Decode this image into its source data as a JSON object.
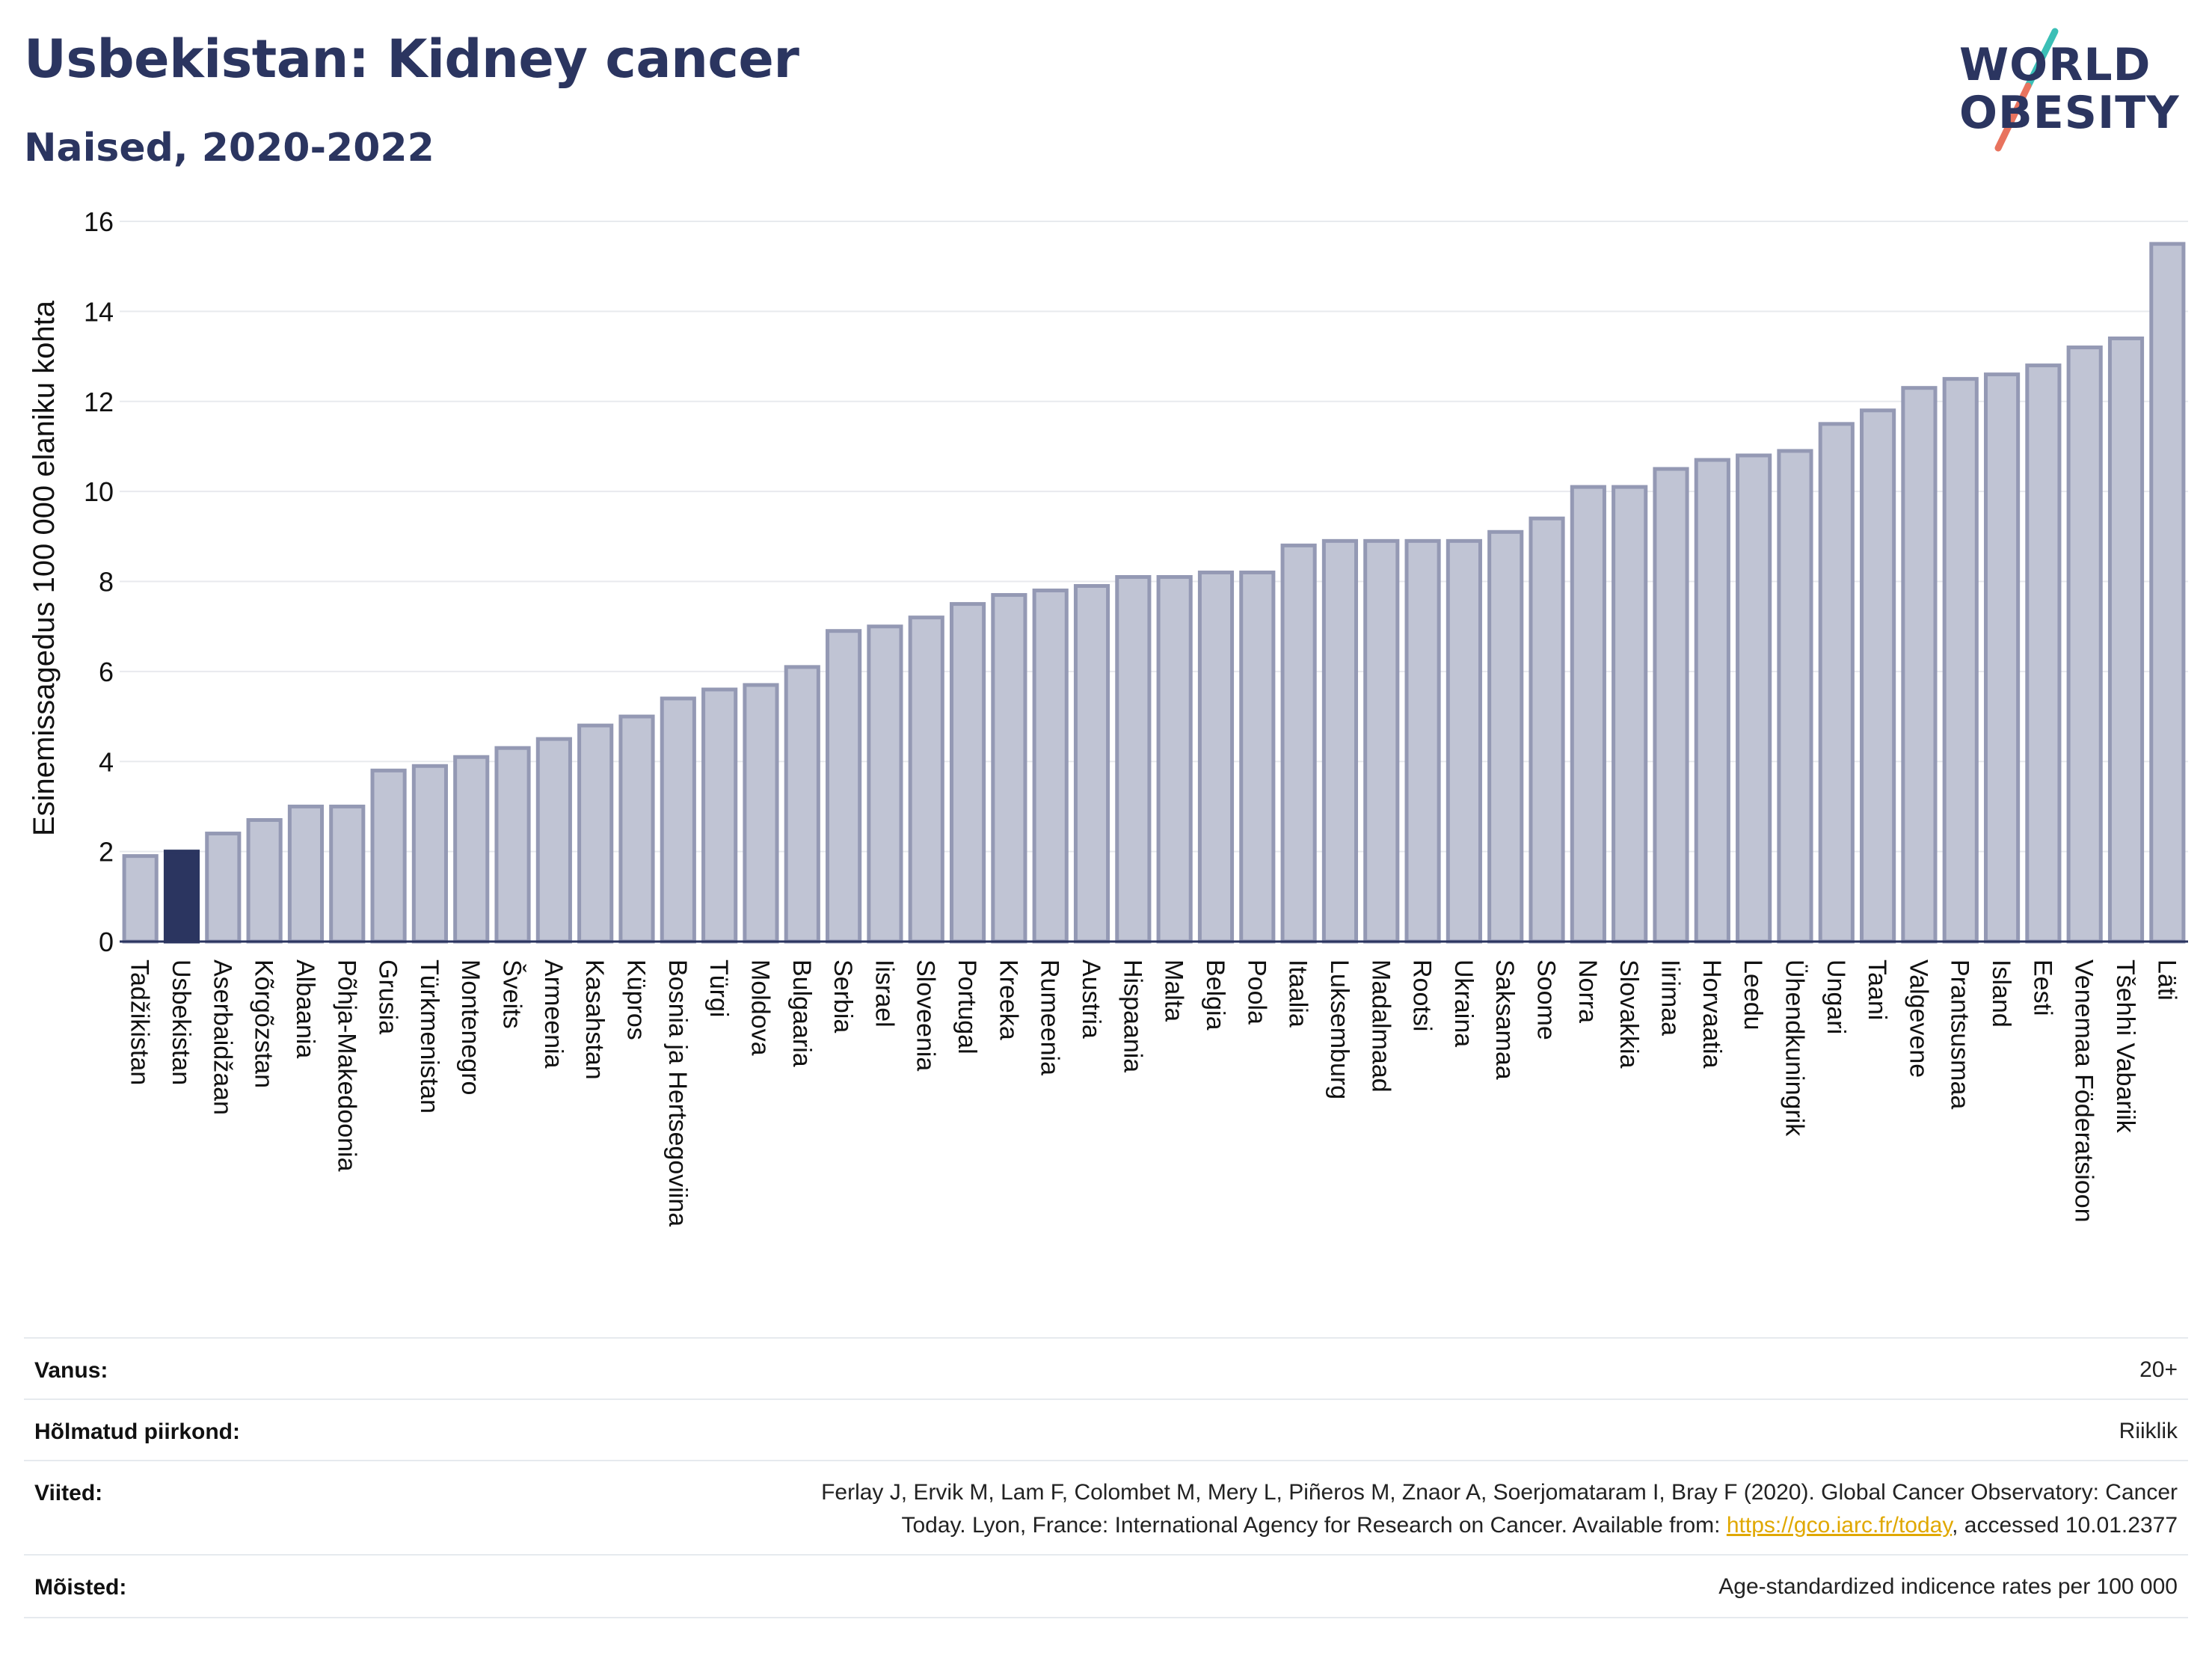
{
  "header": {
    "title": "Usbekistan: Kidney cancer",
    "subtitle": "Naised, 2020-2022"
  },
  "logo": {
    "line1": "WORLD",
    "line2": "OBESITY",
    "colors": {
      "text": "#2b3560",
      "slash_top": "#3bbfb6",
      "slash_bottom": "#e8735e"
    }
  },
  "colors": {
    "bar_fill": "#c0c4d4",
    "bar_stroke": "#9499b4",
    "highlight_fill": "#2b3560",
    "axis": "#2b3560",
    "grid": "#e8eaee"
  },
  "chart_data": {
    "type": "bar",
    "ylabel": "Esinemissagedus 100 000 elaniku kohta",
    "xlabel": "",
    "ylim": [
      0,
      16
    ],
    "yticks": [
      0,
      2,
      4,
      6,
      8,
      10,
      12,
      14,
      16
    ],
    "grid": true,
    "highlight": "Usbekistan",
    "categories": [
      "Tadžikistan",
      "Usbekistan",
      "Aserbaidžaan",
      "Kõrgõzstan",
      "Albaania",
      "Põhja-Makedoonia",
      "Grusia",
      "Türkmenistan",
      "Montenegro",
      "Šveits",
      "Armeenia",
      "Kasahstan",
      "Küpros",
      "Bosnia ja Hertsegoviina",
      "Türgi",
      "Moldova",
      "Bulgaaria",
      "Serbia",
      "Iisrael",
      "Sloveenia",
      "Portugal",
      "Kreeka",
      "Rumeenia",
      "Austria",
      "Hispaania",
      "Malta",
      "Belgia",
      "Poola",
      "Itaalia",
      "Luksemburg",
      "Madalmaad",
      "Rootsi",
      "Ukraina",
      "Saksamaa",
      "Soome",
      "Norra",
      "Slovakkia",
      "Iirimaa",
      "Horvaatia",
      "Leedu",
      "Ühendkuningrik",
      "Ungari",
      "Taani",
      "Valgevene",
      "Prantsusmaa",
      "Island",
      "Eesti",
      "Venemaa Föderatsioon",
      "Tšehhi Vabariik",
      "Läti"
    ],
    "values": [
      1.9,
      2.0,
      2.4,
      2.7,
      3.0,
      3.0,
      3.8,
      3.9,
      4.1,
      4.3,
      4.5,
      4.8,
      5.0,
      5.4,
      5.6,
      5.7,
      6.1,
      6.9,
      7.0,
      7.2,
      7.5,
      7.7,
      7.8,
      7.9,
      8.1,
      8.1,
      8.2,
      8.2,
      8.8,
      8.9,
      8.9,
      8.9,
      8.9,
      9.1,
      9.4,
      10.1,
      10.1,
      10.5,
      10.7,
      10.8,
      10.9,
      11.5,
      11.8,
      12.3,
      12.5,
      12.6,
      12.8,
      13.2,
      13.4,
      15.5
    ]
  },
  "footer": {
    "rows": [
      {
        "label": "Vanus:",
        "value": "20+"
      },
      {
        "label": "Hõlmatud piirkond:",
        "value": "Riiklik"
      },
      {
        "label": "Viited:",
        "value_line1": "Ferlay J, Ervik M, Lam F, Colombet M, Mery L, Piñeros M, Znaor A, Soerjomataram I, Bray F (2020). Global Cancer Observatory: Cancer",
        "value_line2_pre": "Today. Lyon, France: International Agency for Research on Cancer. Available from: ",
        "link": "https://gco.iarc.fr/today",
        "value_line2_post": ", accessed 10.01.2377"
      },
      {
        "label": "Mõisted:",
        "value": "Age-standardized indicence rates per 100 000"
      }
    ]
  }
}
